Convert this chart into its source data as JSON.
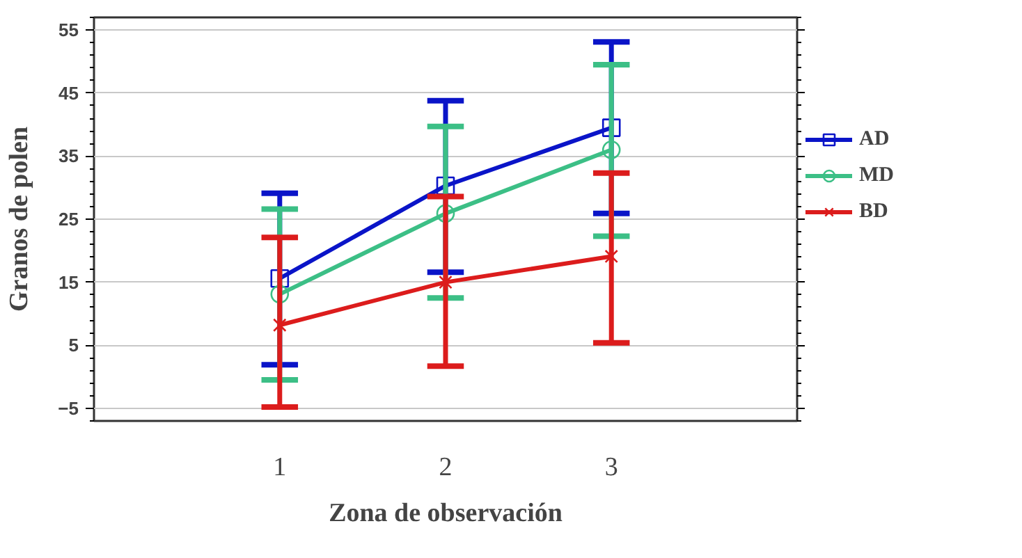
{
  "chart_data": {
    "type": "line",
    "xlabel": "Zona de observación",
    "ylabel": "Granos de polen",
    "x": [
      1,
      2,
      3
    ],
    "xlim": [
      -0.12,
      4.12
    ],
    "xticks": [
      1,
      2,
      3
    ],
    "ylim": [
      -7,
      57
    ],
    "yticks": [
      -5,
      5,
      15,
      25,
      35,
      45,
      55
    ],
    "grid": "y",
    "legend": "right",
    "series": [
      {
        "name": "AD",
        "color": "#0a14c8",
        "marker": "square",
        "values": [
          15.6,
          30.3,
          39.5
        ],
        "errors": [
          [
            1.9,
            29.1
          ],
          [
            16.6,
            43.8
          ],
          [
            25.9,
            53.1
          ]
        ]
      },
      {
        "name": "MD",
        "color": "#3cbf86",
        "marker": "circle",
        "values": [
          13.1,
          25.9,
          36.0
        ],
        "errors": [
          [
            -0.5,
            26.6
          ],
          [
            12.5,
            39.7
          ],
          [
            22.3,
            49.5
          ]
        ]
      },
      {
        "name": "BD",
        "color": "#dc1c1c",
        "marker": "cross",
        "values": [
          8.2,
          15.0,
          19.1
        ],
        "errors": [
          [
            -4.8,
            22.1
          ],
          [
            1.7,
            28.6
          ],
          [
            5.4,
            32.3
          ]
        ]
      }
    ]
  }
}
